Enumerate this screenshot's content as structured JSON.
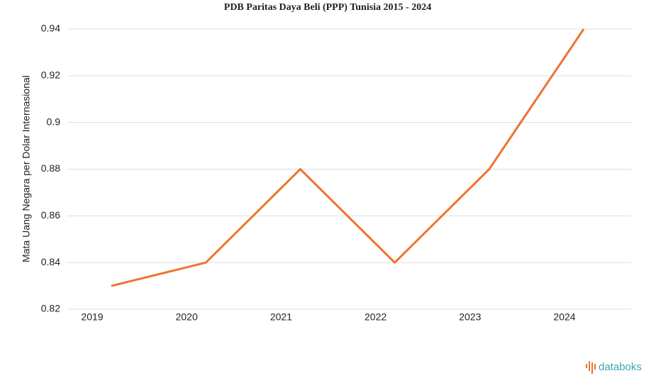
{
  "chart_data": {
    "type": "line",
    "title": "PDB Paritas Daya Beli (PPP) Tunisia 2015 - 2024",
    "y_label": "Mata Uang Negara per Dolar Internasional",
    "categories": [
      "2019",
      "2020",
      "2021",
      "2022",
      "2023",
      "2024"
    ],
    "series": [
      {
        "color": "#ef7330",
        "values": [
          0.83,
          0.84,
          0.88,
          0.84,
          0.88,
          0.94
        ]
      }
    ],
    "ylim": [
      0.82,
      0.94
    ],
    "yticks": [
      0.82,
      0.84,
      0.86,
      0.88,
      0.9,
      0.92,
      0.94
    ],
    "grid": true
  },
  "brand": "databoks"
}
